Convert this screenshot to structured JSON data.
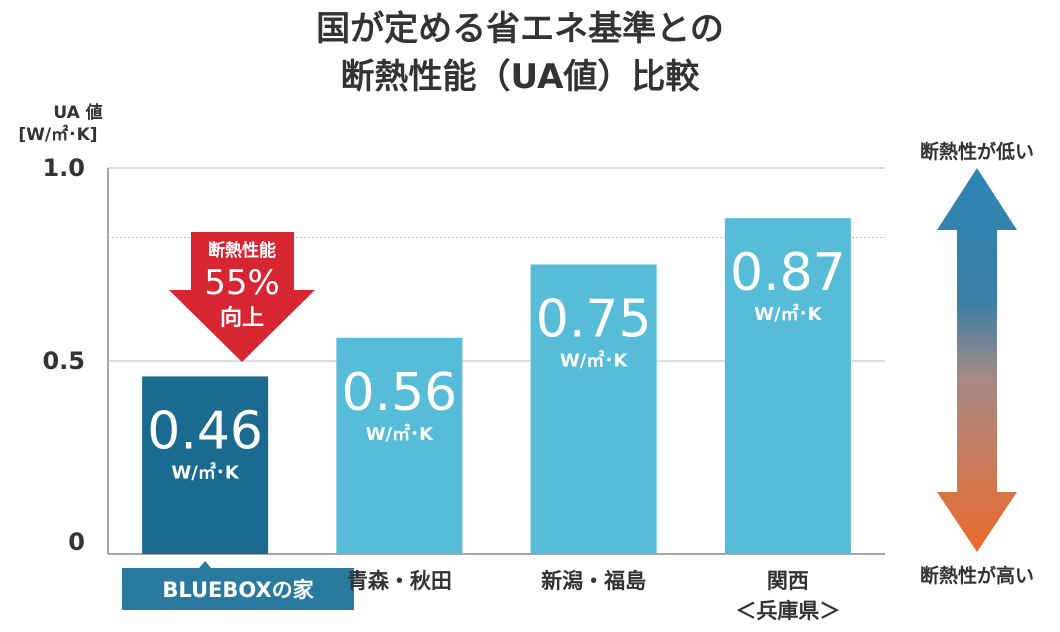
{
  "chart_data": {
    "type": "bar",
    "title_line1": "国が定める省エネ基準との",
    "title_line2": "断熱性能（UA値）比較",
    "ylabel_line1": "UA 値",
    "ylabel_line2": "[W/㎡･K]",
    "ylim": [
      0,
      1.0
    ],
    "yticks": [
      "0",
      "0.5",
      "1.0"
    ],
    "ytick_values": [
      0,
      0.5,
      1.0
    ],
    "gridlines": [
      0.5,
      0.82,
      1.0
    ],
    "categories": [
      "BLUEBOXの家",
      "青森・秋田",
      "新潟・福島",
      "関西"
    ],
    "category_sub": [
      "",
      "",
      "",
      "＜兵庫県＞"
    ],
    "values": [
      0.46,
      0.56,
      0.75,
      0.87
    ],
    "value_labels": [
      "0.46",
      "0.56",
      "0.75",
      "0.87"
    ],
    "unit_label": "W/㎡･K",
    "highlight": {
      "index": 0,
      "arrow_line1": "断熱性能",
      "arrow_line2": "55%",
      "arrow_line3": "向上"
    },
    "scale_arrow": {
      "top_label": "断熱性が低い",
      "bottom_label": "断熱性が高い"
    },
    "colors": {
      "highlight_bar": "#1a6b8f",
      "other_bars": "#56bcd8",
      "arrow_red": "#d52632",
      "scale_top": "#2e86b4",
      "scale_bottom": "#ec6a2c",
      "category_box": "#2a7aa0"
    }
  }
}
